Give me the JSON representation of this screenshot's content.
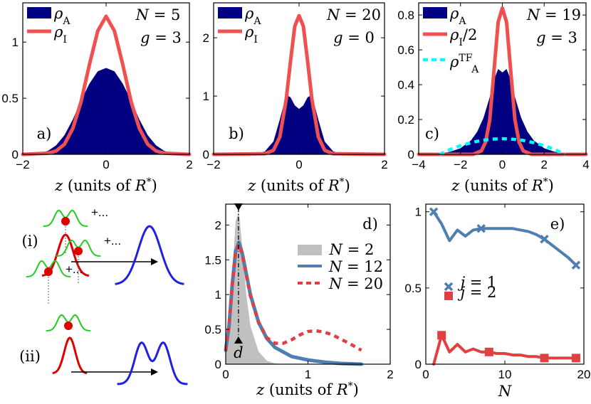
{
  "chart_data": [
    {
      "panel": "a)",
      "type": "area",
      "xlim": [
        -2,
        2
      ],
      "ylim": [
        0,
        1.35
      ],
      "xticks": [
        "−2",
        "0",
        "2"
      ],
      "yticks": [
        "0",
        "0.5",
        "1"
      ],
      "xlabel": "z (units of R*)",
      "annotations": [
        "N = 5",
        "g = 3"
      ],
      "series": [
        {
          "name": "ρA",
          "kind": "area",
          "color": "#000080",
          "x": [
            -2,
            -1.6,
            -1.4,
            -1.2,
            -1.0,
            -0.8,
            -0.6,
            -0.4,
            -0.2,
            0,
            0.2,
            0.4,
            0.6,
            0.8,
            1.0,
            1.2,
            1.4,
            1.6,
            2
          ],
          "y": [
            0,
            0.01,
            0.03,
            0.08,
            0.17,
            0.31,
            0.48,
            0.63,
            0.74,
            0.77,
            0.74,
            0.63,
            0.48,
            0.31,
            0.17,
            0.08,
            0.03,
            0.01,
            0
          ]
        },
        {
          "name": "ρI",
          "kind": "line",
          "color": "#f05050",
          "x": [
            -2,
            -1.4,
            -1.2,
            -1.0,
            -0.8,
            -0.6,
            -0.4,
            -0.2,
            0,
            0.2,
            0.4,
            0.6,
            0.8,
            1.0,
            1.2,
            1.4,
            2
          ],
          "y": [
            0,
            0.01,
            0.03,
            0.09,
            0.23,
            0.47,
            0.8,
            1.1,
            1.23,
            1.1,
            0.8,
            0.47,
            0.23,
            0.09,
            0.03,
            0.01,
            0
          ]
        }
      ]
    },
    {
      "panel": "b)",
      "type": "area",
      "xlim": [
        -2,
        2
      ],
      "ylim": [
        0,
        2.6
      ],
      "xticks": [
        "−2",
        "0",
        "2"
      ],
      "yticks": [
        "0",
        "1",
        "2"
      ],
      "xlabel": "z (units of R*)",
      "annotations": [
        "N = 20",
        "g = 0"
      ],
      "series": [
        {
          "name": "ρA",
          "kind": "area",
          "color": "#000080",
          "x": [
            -2,
            -1.0,
            -0.8,
            -0.6,
            -0.45,
            -0.3,
            -0.2,
            -0.1,
            0,
            0.1,
            0.2,
            0.3,
            0.45,
            0.6,
            0.8,
            1.0,
            2
          ],
          "y": [
            0,
            0.01,
            0.05,
            0.22,
            0.6,
            1.02,
            0.98,
            0.84,
            0.78,
            0.84,
            0.98,
            1.02,
            0.6,
            0.22,
            0.05,
            0.01,
            0
          ]
        },
        {
          "name": "ρI",
          "kind": "line",
          "color": "#f05050",
          "x": [
            -2,
            -0.8,
            -0.6,
            -0.45,
            -0.3,
            -0.2,
            -0.1,
            0,
            0.1,
            0.2,
            0.3,
            0.45,
            0.6,
            0.8,
            2
          ],
          "y": [
            0,
            0.01,
            0.07,
            0.3,
            0.95,
            1.6,
            2.2,
            2.38,
            2.2,
            1.6,
            0.95,
            0.3,
            0.07,
            0.01,
            0
          ]
        }
      ]
    },
    {
      "panel": "c)",
      "type": "area",
      "xlim": [
        -4,
        4
      ],
      "ylim": [
        0,
        0.87
      ],
      "xticks": [
        "−4",
        "−2",
        "0",
        "2",
        "4"
      ],
      "yticks": [
        "0",
        "0.2",
        "0.4",
        "0.6",
        "0.8"
      ],
      "xlabel": "z (units of R*)",
      "annotations": [
        "N = 19",
        "g = 3"
      ],
      "series": [
        {
          "name": "ρA",
          "kind": "area",
          "color": "#000080",
          "x": [
            -4,
            -3,
            -2.5,
            -2,
            -1.5,
            -1.2,
            -0.9,
            -0.6,
            -0.4,
            -0.2,
            0,
            0.2,
            0.4,
            0.6,
            0.9,
            1.2,
            1.5,
            2,
            2.5,
            3,
            4
          ],
          "y": [
            0,
            0.005,
            0.015,
            0.035,
            0.08,
            0.13,
            0.21,
            0.33,
            0.43,
            0.49,
            0.47,
            0.49,
            0.43,
            0.33,
            0.21,
            0.13,
            0.08,
            0.035,
            0.015,
            0.005,
            0
          ]
        },
        {
          "name": "ρI/2",
          "kind": "line",
          "color": "#f05050",
          "x": [
            -4,
            -1.4,
            -1.0,
            -0.8,
            -0.6,
            -0.4,
            -0.2,
            0,
            0.2,
            0.4,
            0.6,
            0.8,
            1.0,
            1.4,
            4
          ],
          "y": [
            0,
            0.0,
            0.02,
            0.07,
            0.2,
            0.48,
            0.76,
            0.84,
            0.76,
            0.48,
            0.2,
            0.07,
            0.02,
            0.0,
            0
          ]
        },
        {
          "name": "ρA^TF",
          "kind": "dashed",
          "color": "#00ffff",
          "x": [
            -3,
            -2.5,
            -2,
            -1.5,
            -1,
            -0.5,
            0,
            0.5,
            1,
            1.5,
            2,
            2.5,
            3
          ],
          "y": [
            0,
            0.028,
            0.05,
            0.067,
            0.08,
            0.087,
            0.09,
            0.087,
            0.08,
            0.067,
            0.05,
            0.028,
            0
          ]
        }
      ]
    },
    {
      "panel": "d)",
      "type": "line",
      "xlim": [
        0,
        2
      ],
      "ylim": [
        0,
        2.3
      ],
      "xticks": [
        "0",
        "1",
        "2"
      ],
      "yticks": [
        "0",
        "0.5",
        "1",
        "1.5",
        "2"
      ],
      "xlabel": "z (units of R*)",
      "annotations": [
        "d"
      ],
      "series": [
        {
          "name": "N = 2",
          "kind": "area",
          "color": "#c0c0c0",
          "x": [
            0,
            0.04,
            0.08,
            0.12,
            0.16,
            0.2,
            0.25,
            0.3,
            0.4,
            0.5,
            0.6,
            0.7
          ],
          "y": [
            0.1,
            0.5,
            1.3,
            2.05,
            2.2,
            1.7,
            1.0,
            0.55,
            0.18,
            0.05,
            0.01,
            0
          ]
        },
        {
          "name": "N = 12",
          "kind": "line",
          "color": "#4f7fb0",
          "x": [
            0,
            0.04,
            0.08,
            0.12,
            0.16,
            0.2,
            0.25,
            0.3,
            0.4,
            0.5,
            0.6,
            0.8,
            1.0,
            1.2,
            1.4,
            1.65
          ],
          "y": [
            0.2,
            0.55,
            1.15,
            1.62,
            1.75,
            1.6,
            1.3,
            1.0,
            0.6,
            0.37,
            0.24,
            0.11,
            0.06,
            0.03,
            0.01,
            0.0
          ]
        },
        {
          "name": "N = 20",
          "kind": "dashed",
          "color": "#e04040",
          "x": [
            0,
            0.04,
            0.08,
            0.12,
            0.16,
            0.2,
            0.25,
            0.3,
            0.4,
            0.5,
            0.6,
            0.7,
            0.8,
            0.9,
            1.0,
            1.1,
            1.2,
            1.3,
            1.4,
            1.5,
            1.65
          ],
          "y": [
            0.2,
            0.55,
            1.15,
            1.6,
            1.72,
            1.58,
            1.28,
            0.98,
            0.6,
            0.38,
            0.3,
            0.3,
            0.35,
            0.42,
            0.47,
            0.48,
            0.46,
            0.42,
            0.36,
            0.3,
            0.2
          ]
        }
      ]
    },
    {
      "panel": "e)",
      "type": "line",
      "xlim": [
        0,
        20
      ],
      "ylim": [
        0,
        1.05
      ],
      "xticks": [
        "0",
        "10",
        "20"
      ],
      "yticks": [
        "0",
        "0.5",
        "1"
      ],
      "xlabel": "N",
      "series": [
        {
          "name": "j = 1",
          "kind": "line-markers",
          "color": "#4f7fb0",
          "x": [
            1,
            2,
            3,
            4,
            5,
            6,
            7,
            8,
            9,
            10,
            11,
            12,
            13,
            14,
            15,
            16,
            17,
            18,
            19
          ],
          "y": [
            1.0,
            0.92,
            0.81,
            0.88,
            0.84,
            0.88,
            0.89,
            0.89,
            0.89,
            0.89,
            0.89,
            0.88,
            0.87,
            0.85,
            0.82,
            0.78,
            0.74,
            0.7,
            0.65
          ],
          "markers_x": [
            1,
            7,
            15,
            19
          ],
          "markers_y": [
            1.0,
            0.89,
            0.82,
            0.65
          ]
        },
        {
          "name": "j = 2",
          "kind": "line-markers",
          "color": "#e04040",
          "x": [
            1,
            2,
            3,
            4,
            5,
            6,
            7,
            8,
            9,
            10,
            11,
            12,
            13,
            14,
            15,
            16,
            17,
            18,
            19
          ],
          "y": [
            0.0,
            0.19,
            0.08,
            0.13,
            0.08,
            0.1,
            0.08,
            0.08,
            0.07,
            0.07,
            0.06,
            0.06,
            0.05,
            0.05,
            0.04,
            0.04,
            0.04,
            0.04,
            0.04
          ],
          "markers_x": [
            2,
            8,
            15,
            19
          ],
          "markers_y": [
            0.19,
            0.08,
            0.04,
            0.04
          ]
        }
      ]
    }
  ],
  "schematic": {
    "label_i": "(i)",
    "label_ii": "(ii)",
    "plus_dots": "+..."
  }
}
